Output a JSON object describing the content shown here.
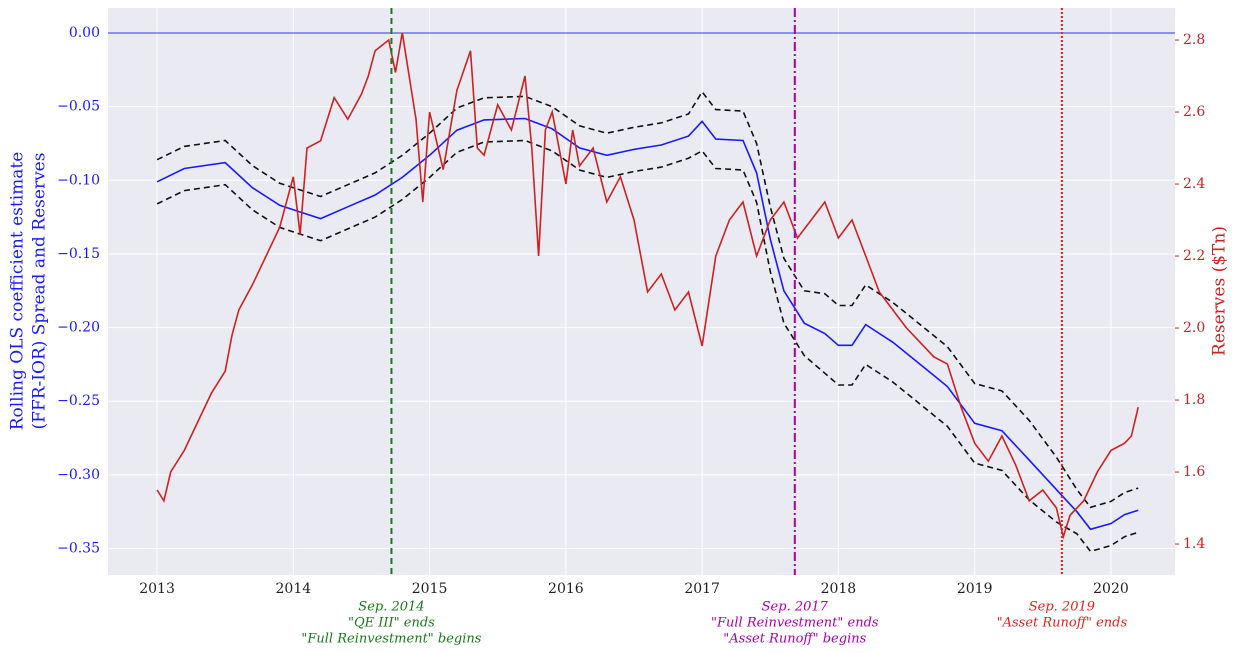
{
  "chart_data": {
    "type": "line",
    "ylabel": [
      "Rolling OLS coefficient estimate",
      "(FFR-IOR) Spread and Reserves"
    ],
    "y2label": "Reserves ($Tn)",
    "xlim": [
      2012.64,
      2020.47
    ],
    "xticks": [
      2013,
      2014,
      2015,
      2016,
      2017,
      2018,
      2019,
      2020
    ],
    "ylim": [
      -0.368,
      0.017
    ],
    "yticks": [
      {
        "value": 0,
        "label": "0.00"
      },
      {
        "value": -0.05,
        "label": "−0.05"
      },
      {
        "value": -0.1,
        "label": "−0.10"
      },
      {
        "value": -0.15,
        "label": "−0.15"
      },
      {
        "value": -0.2,
        "label": "−0.20"
      },
      {
        "value": -0.25,
        "label": "−0.25"
      },
      {
        "value": -0.3,
        "label": "−0.30"
      },
      {
        "value": -0.35,
        "label": "−0.35"
      }
    ],
    "y2lim": [
      1.314,
      2.889
    ],
    "y2ticks": [
      1.4,
      1.6,
      1.8,
      {
        "value": 2,
        "label": "2.0"
      },
      2.2,
      2.4,
      2.6,
      2.8
    ],
    "grid": true,
    "hlines": [
      {
        "y": 0,
        "color": "#3333ff"
      }
    ],
    "vlines": [
      {
        "x": 2014.72,
        "color": "#1a7a1a",
        "style": "dashed",
        "text": [
          "Sep. 2014",
          "\"QE III\" ends",
          "\"Full Reinvestment\" begins"
        ]
      },
      {
        "x": 2017.68,
        "color": "#aa00aa",
        "style": "dashdot",
        "text": [
          "Sep. 2017",
          "\"Full Reinvestment\" ends",
          "\"Asset Runoff\" begins"
        ]
      },
      {
        "x": 2019.64,
        "color": "#e62020",
        "style": "dotted",
        "text": [
          "Sep. 2019",
          "\"Asset Runoff\" ends"
        ]
      }
    ],
    "series": [
      {
        "color": "#1a1aff",
        "style": "solid",
        "x": [
          2013.0,
          2013.2,
          2013.5,
          2013.7,
          2013.9,
          2014.0,
          2014.2,
          2014.4,
          2014.6,
          2014.8,
          2015.0,
          2015.2,
          2015.4,
          2015.7,
          2015.9,
          2016.1,
          2016.3,
          2016.5,
          2016.7,
          2016.9,
          2017.0,
          2017.1,
          2017.3,
          2017.4,
          2017.5,
          2017.6,
          2017.75,
          2017.9,
          2018.0,
          2018.1,
          2018.2,
          2018.4,
          2018.6,
          2018.8,
          2019.0,
          2019.2,
          2019.4,
          2019.6,
          2019.75,
          2019.85,
          2020.0,
          2020.1,
          2020.2
        ],
        "values": [
          -0.101,
          -0.092,
          -0.088,
          -0.105,
          -0.117,
          -0.12,
          -0.126,
          -0.118,
          -0.11,
          -0.098,
          -0.083,
          -0.066,
          -0.059,
          -0.058,
          -0.065,
          -0.078,
          -0.083,
          -0.079,
          -0.076,
          -0.07,
          -0.06,
          -0.072,
          -0.073,
          -0.095,
          -0.14,
          -0.175,
          -0.197,
          -0.204,
          -0.212,
          -0.212,
          -0.198,
          -0.21,
          -0.225,
          -0.24,
          -0.265,
          -0.27,
          -0.29,
          -0.31,
          -0.325,
          -0.337,
          -0.333,
          -0.327,
          -0.324
        ]
      },
      {
        "color": "#111111",
        "style": "dashed",
        "x": [
          2013.0,
          2013.2,
          2013.5,
          2013.7,
          2013.9,
          2014.0,
          2014.2,
          2014.4,
          2014.6,
          2014.8,
          2015.0,
          2015.2,
          2015.4,
          2015.7,
          2015.9,
          2016.1,
          2016.3,
          2016.5,
          2016.7,
          2016.9,
          2017.0,
          2017.1,
          2017.3,
          2017.4,
          2017.5,
          2017.6,
          2017.75,
          2017.9,
          2018.0,
          2018.1,
          2018.2,
          2018.4,
          2018.6,
          2018.8,
          2019.0,
          2019.2,
          2019.4,
          2019.6,
          2019.75,
          2019.85,
          2020.0,
          2020.1,
          2020.2
        ],
        "values": [
          -0.086,
          -0.077,
          -0.073,
          -0.09,
          -0.102,
          -0.105,
          -0.111,
          -0.103,
          -0.095,
          -0.083,
          -0.068,
          -0.051,
          -0.044,
          -0.043,
          -0.05,
          -0.063,
          -0.068,
          -0.064,
          -0.061,
          -0.055,
          -0.04,
          -0.052,
          -0.053,
          -0.075,
          -0.118,
          -0.153,
          -0.175,
          -0.177,
          -0.185,
          -0.185,
          -0.171,
          -0.183,
          -0.198,
          -0.213,
          -0.238,
          -0.243,
          -0.263,
          -0.288,
          -0.31,
          -0.322,
          -0.318,
          -0.312,
          -0.309
        ]
      },
      {
        "color": "#111111",
        "style": "dashed",
        "x": [
          2013.0,
          2013.2,
          2013.5,
          2013.7,
          2013.9,
          2014.0,
          2014.2,
          2014.4,
          2014.6,
          2014.8,
          2015.0,
          2015.2,
          2015.4,
          2015.7,
          2015.9,
          2016.1,
          2016.3,
          2016.5,
          2016.7,
          2016.9,
          2017.0,
          2017.1,
          2017.3,
          2017.4,
          2017.5,
          2017.6,
          2017.75,
          2017.9,
          2018.0,
          2018.1,
          2018.2,
          2018.4,
          2018.6,
          2018.8,
          2019.0,
          2019.2,
          2019.4,
          2019.6,
          2019.75,
          2019.85,
          2020.0,
          2020.1,
          2020.2
        ],
        "values": [
          -0.116,
          -0.107,
          -0.103,
          -0.12,
          -0.132,
          -0.135,
          -0.141,
          -0.133,
          -0.125,
          -0.113,
          -0.098,
          -0.081,
          -0.074,
          -0.073,
          -0.08,
          -0.093,
          -0.098,
          -0.094,
          -0.091,
          -0.085,
          -0.08,
          -0.092,
          -0.093,
          -0.115,
          -0.162,
          -0.197,
          -0.219,
          -0.231,
          -0.239,
          -0.239,
          -0.225,
          -0.237,
          -0.252,
          -0.267,
          -0.292,
          -0.297,
          -0.317,
          -0.332,
          -0.34,
          -0.352,
          -0.348,
          -0.342,
          -0.339
        ]
      },
      {
        "color": "#cc2222",
        "style": "solid",
        "axis": "y2",
        "x": [
          2013.0,
          2013.05,
          2013.1,
          2013.2,
          2013.3,
          2013.4,
          2013.5,
          2013.55,
          2013.6,
          2013.7,
          2013.8,
          2013.9,
          2014.0,
          2014.05,
          2014.1,
          2014.2,
          2014.3,
          2014.4,
          2014.5,
          2014.55,
          2014.6,
          2014.7,
          2014.75,
          2014.8,
          2014.9,
          2014.95,
          2015.0,
          2015.1,
          2015.2,
          2015.3,
          2015.35,
          2015.4,
          2015.5,
          2015.6,
          2015.7,
          2015.75,
          2015.8,
          2015.85,
          2015.9,
          2016.0,
          2016.05,
          2016.1,
          2016.2,
          2016.3,
          2016.4,
          2016.5,
          2016.6,
          2016.7,
          2016.8,
          2016.9,
          2017.0,
          2017.1,
          2017.2,
          2017.3,
          2017.4,
          2017.5,
          2017.6,
          2017.7,
          2017.8,
          2017.9,
          2018.0,
          2018.1,
          2018.2,
          2018.3,
          2018.4,
          2018.5,
          2018.6,
          2018.7,
          2018.8,
          2018.9,
          2019.0,
          2019.1,
          2019.2,
          2019.3,
          2019.4,
          2019.5,
          2019.6,
          2019.65,
          2019.7,
          2019.8,
          2019.9,
          2020.0,
          2020.1,
          2020.15,
          2020.2
        ],
        "values": [
          1.55,
          1.52,
          1.6,
          1.66,
          1.74,
          1.82,
          1.88,
          1.98,
          2.05,
          2.12,
          2.2,
          2.28,
          2.42,
          2.26,
          2.5,
          2.52,
          2.64,
          2.58,
          2.65,
          2.7,
          2.77,
          2.8,
          2.71,
          2.82,
          2.58,
          2.35,
          2.6,
          2.44,
          2.66,
          2.77,
          2.5,
          2.48,
          2.62,
          2.55,
          2.7,
          2.5,
          2.2,
          2.55,
          2.6,
          2.4,
          2.55,
          2.45,
          2.5,
          2.35,
          2.42,
          2.3,
          2.1,
          2.15,
          2.05,
          2.1,
          1.95,
          2.2,
          2.3,
          2.35,
          2.2,
          2.3,
          2.35,
          2.25,
          2.3,
          2.35,
          2.25,
          2.3,
          2.2,
          2.1,
          2.05,
          2.0,
          1.96,
          1.92,
          1.9,
          1.78,
          1.68,
          1.63,
          1.7,
          1.62,
          1.52,
          1.55,
          1.5,
          1.42,
          1.48,
          1.52,
          1.6,
          1.66,
          1.68,
          1.7,
          1.78
        ]
      }
    ]
  }
}
